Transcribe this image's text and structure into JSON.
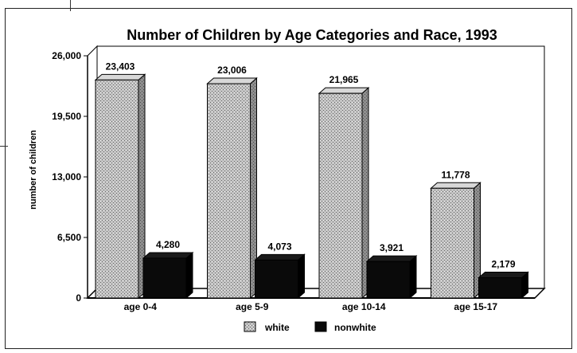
{
  "chart_data": {
    "type": "bar",
    "title": "Number of Children by Age Categories and Race, 1993",
    "xlabel": "",
    "ylabel": "number of children",
    "categories": [
      "age 0-4",
      "age 5-9",
      "age 10-14",
      "age 15-17"
    ],
    "series": [
      {
        "name": "white",
        "values": [
          23403,
          23006,
          21965,
          11778
        ],
        "labels": [
          "23,403",
          "23,006",
          "21,965",
          "11,778"
        ],
        "color": "#b8b8b8"
      },
      {
        "name": "nonwhite",
        "values": [
          4280,
          4073,
          3921,
          2179
        ],
        "labels": [
          "4,280",
          "4,073",
          "3,921",
          "2,179"
        ],
        "color": "#0a0a0a"
      }
    ],
    "ylim": [
      0,
      26000
    ],
    "yticks": [
      0,
      6500,
      13000,
      19500,
      26000
    ],
    "ytick_labels": [
      "0",
      "6,500",
      "13,000",
      "19,500",
      "26,000"
    ],
    "grid": false,
    "legend_position": "bottom-center",
    "style": "3d-bars"
  }
}
